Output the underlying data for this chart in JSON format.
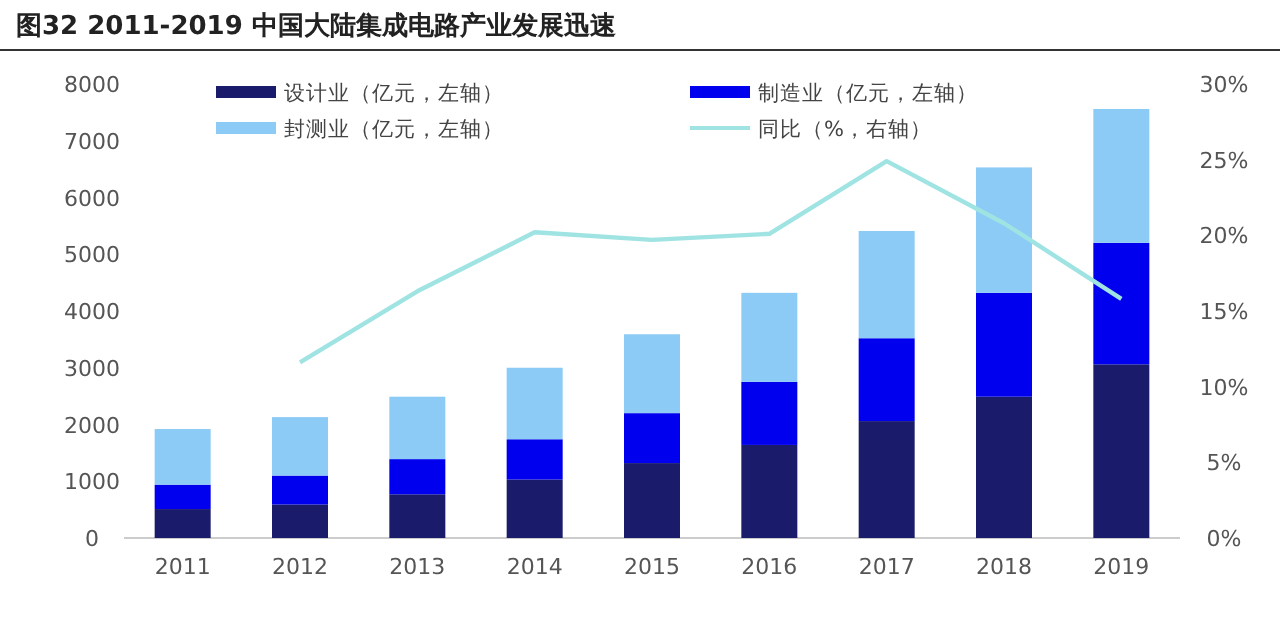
{
  "chart_data": {
    "type": "bar",
    "title": "图32  2011-2019 中国大陆集成电路产业发展迅速",
    "stacked": true,
    "categories": [
      "2011",
      "2012",
      "2013",
      "2014",
      "2015",
      "2016",
      "2017",
      "2018",
      "2019"
    ],
    "series": [
      {
        "name": "设计业（亿元，左轴）",
        "color": "#1b1b6b",
        "values": [
          510,
          590,
          770,
          1030,
          1320,
          1640,
          2060,
          2490,
          3060
        ]
      },
      {
        "name": "制造业（亿元，左轴）",
        "color": "#0000ee",
        "values": [
          430,
          510,
          620,
          710,
          880,
          1110,
          1460,
          1830,
          2140
        ]
      },
      {
        "name": "封测业（亿元，左轴）",
        "color": "#8ccbf5",
        "values": [
          980,
          1030,
          1100,
          1260,
          1390,
          1570,
          1890,
          2210,
          2360
        ]
      },
      {
        "name": "同比（%，右轴）",
        "type": "line",
        "axis": "y2",
        "color": "#9fe3e3",
        "values": [
          null,
          11.6,
          16.3,
          20.2,
          19.7,
          20.1,
          24.9,
          20.8,
          15.8
        ]
      }
    ],
    "ylim": [
      0,
      8000
    ],
    "yticks": [
      0,
      1000,
      2000,
      3000,
      4000,
      5000,
      6000,
      7000,
      8000
    ],
    "y2lim": [
      0,
      30
    ],
    "y2ticks": [
      {
        "value": 0,
        "label": "0%"
      },
      {
        "value": 5,
        "label": "5%"
      },
      {
        "value": 10,
        "label": "10%"
      },
      {
        "value": 15,
        "label": "15%"
      },
      {
        "value": 20,
        "label": "20%"
      },
      {
        "value": 25,
        "label": "25%"
      },
      {
        "value": 30,
        "label": "30%"
      }
    ],
    "grid": false,
    "legend": "top"
  }
}
